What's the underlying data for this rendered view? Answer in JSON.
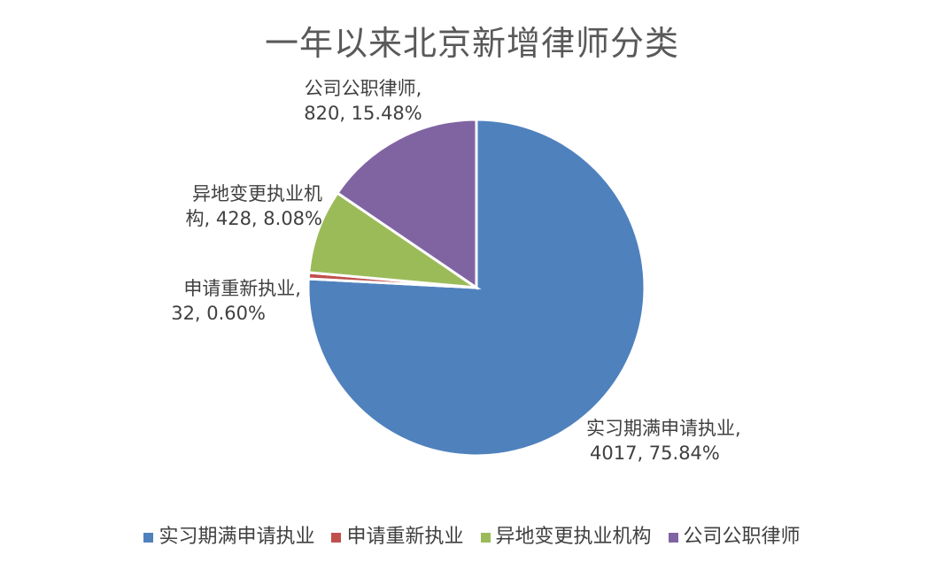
{
  "chart_data": {
    "type": "pie",
    "title": "一年以来北京新增律师分类",
    "start_angle": "12 o'clock",
    "direction": "clockwise",
    "slices": [
      {
        "name": "实习期满申请执业",
        "value": 4017,
        "percent": "75.84%",
        "color": "#4F81BD",
        "label_line1": "实习期满申请执业,",
        "label_line2": "4017, 75.84%"
      },
      {
        "name": "申请重新执业",
        "value": 32,
        "percent": "0.60%",
        "color": "#C0504D",
        "label_line1": "申请重新执业,",
        "label_line2": "32, 0.60%"
      },
      {
        "name": "异地变更执业机构",
        "value": 428,
        "percent": "8.08%",
        "color": "#9BBB59",
        "label_line1": "异地变更执业机",
        "label_line2": "构, 428, 8.08%"
      },
      {
        "name": "公司公职律师",
        "value": 820,
        "percent": "15.48%",
        "color": "#8064A2",
        "label_line1": "公司公职律师,",
        "label_line2": "820, 15.48%"
      }
    ],
    "legend": [
      "实习期满申请执业",
      "申请重新执业",
      "异地变更执业机构",
      "公司公职律师"
    ],
    "legend_position": "bottom"
  }
}
